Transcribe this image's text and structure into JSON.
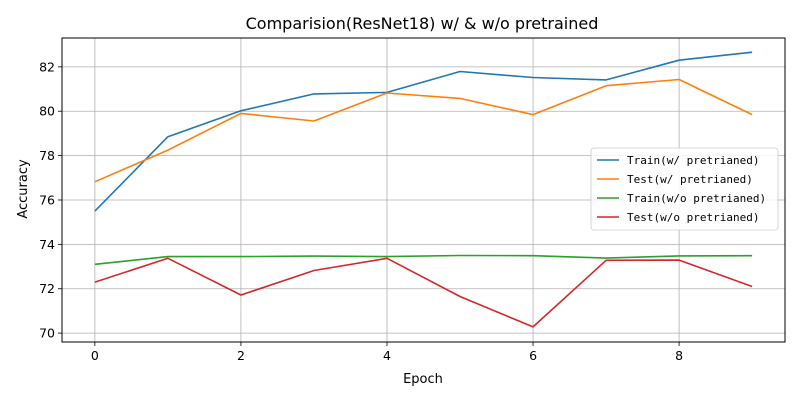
{
  "chart_data": {
    "type": "line",
    "title": "Comparision(ResNet18) w/ & w/o pretrained",
    "xlabel": "Epoch",
    "ylabel": "Accuracy",
    "x": [
      0,
      1,
      2,
      3,
      4,
      5,
      6,
      7,
      8,
      9
    ],
    "xlim": [
      -0.45,
      9.45
    ],
    "ylim": [
      69.6,
      83.3
    ],
    "xticks": [
      0,
      2,
      4,
      6,
      8
    ],
    "yticks": [
      70,
      72,
      74,
      76,
      78,
      80,
      82
    ],
    "grid": true,
    "legend_position": "center-right",
    "series": [
      {
        "name": "Train(w/ pretrianed)",
        "color": "#1f77b4",
        "values": [
          75.5,
          78.85,
          80.02,
          80.78,
          80.85,
          81.79,
          81.52,
          81.41,
          82.3,
          82.66
        ]
      },
      {
        "name": "Test(w/ pretrianed)",
        "color": "#ff7f0e",
        "values": [
          76.82,
          78.25,
          79.9,
          79.56,
          80.82,
          80.58,
          79.85,
          81.15,
          81.43,
          79.85
        ]
      },
      {
        "name": "Train(w/o pretrianed)",
        "color": "#2ca02c",
        "values": [
          73.1,
          73.45,
          73.45,
          73.47,
          73.45,
          73.5,
          73.49,
          73.38,
          73.48,
          73.49
        ]
      },
      {
        "name": "Test(w/o pretrianed)",
        "color": "#d62728",
        "values": [
          72.3,
          73.37,
          71.72,
          72.82,
          73.37,
          71.65,
          70.28,
          73.28,
          73.29,
          72.1
        ]
      }
    ]
  }
}
